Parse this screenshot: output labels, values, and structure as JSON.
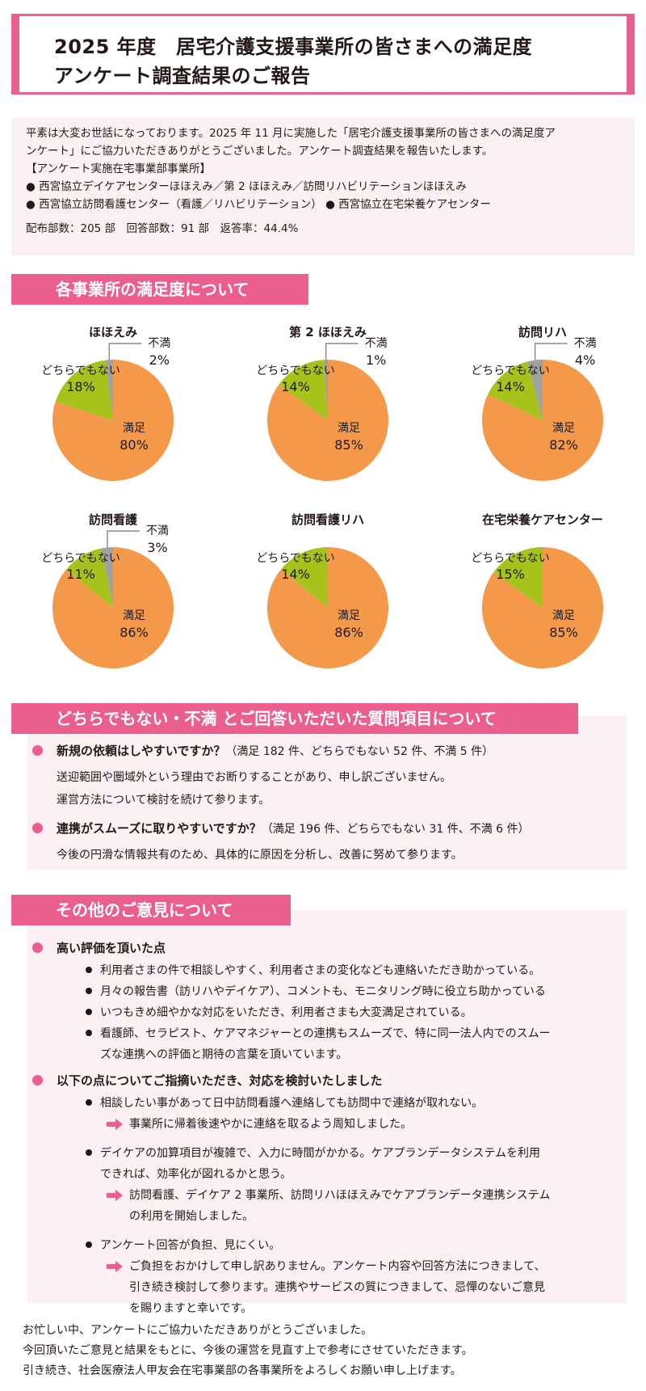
{
  "header": {
    "title_line1": "2025 年度　居宅介護支援事業所の皆さまへの満足度",
    "title_line2": "アンケート調査結果のご報告"
  },
  "intro": {
    "line1": "平素は大変お世話になっております。2025 年 11 月に実施した「居宅介護支援事業所の皆さまへの満足度ア",
    "line2": "ンケート」にご協力いただきありがとうございました。アンケート調査結果を報告いたします。",
    "line3": "【アンケート実施在宅事業部事業所】",
    "line4": "● 西宮協立デイケアセンターほほえみ／第 2 ほほえみ／訪問リハビリテーションほほえみ",
    "line5": "● 西宮協立訪問看護センター（看護／リハビリテーション） ● 西宮協立在宅栄養ケアセンター",
    "stats": "配布部数：205 部　回答部数：91 部　返答率：44.4%"
  },
  "section1": {
    "title": "各事業所の満足度について"
  },
  "colors": {
    "satisfied": "#f4994a",
    "neutral": "#a6c31b",
    "dissatisfied": "#9fa0a0",
    "accent": "#ea5f8f",
    "panel": "#fdf0f3"
  },
  "labels": {
    "satisfied": "満足",
    "neutral": "どちらでもない",
    "dissatisfied": "不満"
  },
  "chart_data": [
    {
      "type": "pie",
      "title": "ほほえみ",
      "slices": [
        {
          "label": "満足",
          "value": 80,
          "text": "80%"
        },
        {
          "label": "どちらでもない",
          "value": 18,
          "text": "18%"
        },
        {
          "label": "不満",
          "value": 2,
          "text": "2%"
        }
      ]
    },
    {
      "type": "pie",
      "title": "第 2 ほほえみ",
      "slices": [
        {
          "label": "満足",
          "value": 85,
          "text": "85%"
        },
        {
          "label": "どちらでもない",
          "value": 14,
          "text": "14%"
        },
        {
          "label": "不満",
          "value": 1,
          "text": "1%"
        }
      ]
    },
    {
      "type": "pie",
      "title": "訪問リハ",
      "slices": [
        {
          "label": "満足",
          "value": 82,
          "text": "82%"
        },
        {
          "label": "どちらでもない",
          "value": 14,
          "text": "14%"
        },
        {
          "label": "不満",
          "value": 4,
          "text": "4%"
        }
      ]
    },
    {
      "type": "pie",
      "title": "訪問看護",
      "slices": [
        {
          "label": "満足",
          "value": 86,
          "text": "86%"
        },
        {
          "label": "どちらでもない",
          "value": 11,
          "text": "11%"
        },
        {
          "label": "不満",
          "value": 3,
          "text": "3%"
        }
      ]
    },
    {
      "type": "pie",
      "title": "訪問看護リハ",
      "slices": [
        {
          "label": "満足",
          "value": 86,
          "text": "86%"
        },
        {
          "label": "どちらでもない",
          "value": 14,
          "text": "14%"
        }
      ]
    },
    {
      "type": "pie",
      "title": "在宅栄養ケアセンター",
      "slices": [
        {
          "label": "満足",
          "value": 85,
          "text": "85%"
        },
        {
          "label": "どちらでもない",
          "value": 15,
          "text": "15%"
        }
      ]
    }
  ],
  "section2": {
    "title": "どちらでもない・不満 とご回答いただいた質問項目について",
    "q1_title": "新規の依頼はしやすいですか？",
    "q1_detail": "（満足 182 件、どちらでもない 52 件、不満 5 件）",
    "q1_line1": "送迎範囲や圏域外という理由でお断りすることがあり、申し訳ございません。",
    "q1_line2": "運営方法について検討を続けて参ります。",
    "q2_title": "連携がスムーズに取りやすいですか？",
    "q2_detail": "（満足 196 件、どちらでもない 31 件、不満 6 件）",
    "q2_line1": "今後の円滑な情報共有のため、具体的に原因を分析し、改善に努めて参ります。"
  },
  "section3": {
    "title": "その他のご意見について",
    "praise_title": "高い評価を頂いた点",
    "praise1": "利用者さまの件で相談しやすく、利用者さまの変化なども連絡いただき助かっている。",
    "praise2": "月々の報告書（訪リハやデイケア）、コメントも、モニタリング時に役立ち助かっている",
    "praise3": "いつもきめ細やかな対応をいただき、利用者さまも大変満足されている。",
    "praise4_line1": "看護師、セラピスト、ケアマネジャーとの連携もスムーズで、特に同一法人内でのスムー",
    "praise4_line2": "ズな連携への評価と期待の言葉を頂いています。",
    "issues_title": "以下の点についてご指摘いただき、対応を検討いたしました",
    "issue1": "相談したい事があって日中訪問看護へ連絡しても訪問中で連絡が取れない。",
    "issue1_reply": "事業所に帰着後速やかに連絡を取るよう周知しました。",
    "issue2_line1": "デイケアの加算項目が複雑で、入力に時間がかかる。ケアプランデータシステムを利用",
    "issue2_line2": "できれば、効率化が図れるかと思う。",
    "issue2_reply_line1": "訪問看護、デイケア 2 事業所、訪問リハほほえみでケアプランデータ連携システム",
    "issue2_reply_line2": "の利用を開始しました。",
    "issue3": "アンケート回答が負担、見にくい。",
    "issue3_reply_line1": "ご負担をおかけして申し訳ありません。アンケート内容や回答方法につきまして、",
    "issue3_reply_line2": "引き続き検討して参ります。連携やサービスの質につきまして、忌憚のないご意見",
    "issue3_reply_line3": "を賜りますと幸いです。"
  },
  "footer": {
    "line1": "お忙しい中、アンケートにご協力いただきありがとうございました。",
    "line2": "今回頂いたご意見と結果をもとに、今後の運営を見直す上で参考にさせていただきます。",
    "line3": "引き続き、社会医療法人甲友会在宅事業部の各事業所をよろしくお願い申し上げます。"
  }
}
